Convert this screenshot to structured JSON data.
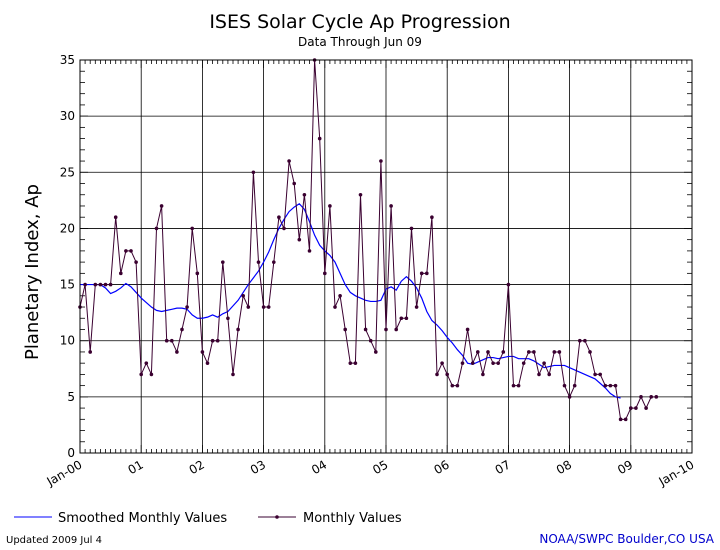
{
  "chart_data": {
    "type": "line",
    "title": "ISES Solar Cycle Ap Progression",
    "subtitle": "Data Through Jun 09",
    "ylabel": "Planetary Index, Ap",
    "xlabel": "",
    "x_tick_labels": [
      "Jan-00",
      "01",
      "02",
      "03",
      "04",
      "05",
      "06",
      "07",
      "08",
      "09",
      "Jan-10"
    ],
    "y_tick_labels": [
      "0",
      "5",
      "10",
      "15",
      "20",
      "25",
      "30",
      "35"
    ],
    "ylim": [
      0,
      35
    ],
    "x_range_years": [
      2000.0,
      2010.0
    ],
    "grid": true,
    "legend_position": "bottom-left",
    "colors": {
      "smoothed": "#0000ff",
      "monthly": "#3a0030",
      "axes": "#000000"
    },
    "series": [
      {
        "name": "Monthly Values",
        "x_start": "2000-01",
        "frequency": "monthly",
        "values": [
          13,
          15,
          9,
          15,
          15,
          15,
          15,
          21,
          16,
          18,
          18,
          17,
          7,
          8,
          7,
          20,
          22,
          10,
          10,
          9,
          11,
          13,
          20,
          16,
          9,
          8,
          10,
          10,
          17,
          12,
          7,
          11,
          14,
          13,
          25,
          17,
          13,
          13,
          17,
          21,
          20,
          26,
          24,
          19,
          23,
          18,
          35,
          28,
          16,
          22,
          13,
          14,
          11,
          8,
          8,
          23,
          11,
          10,
          9,
          26,
          11,
          22,
          11,
          12,
          12,
          20,
          13,
          16,
          16,
          21,
          7,
          8,
          7,
          6,
          6,
          8,
          11,
          8,
          9,
          7,
          9,
          8,
          8,
          9,
          15,
          6,
          6,
          8,
          9,
          9,
          7,
          8,
          7,
          9,
          9,
          6,
          5,
          6,
          10,
          10,
          9,
          7,
          7,
          6,
          6,
          6,
          3,
          3,
          4,
          4,
          5,
          4,
          5,
          5
        ]
      },
      {
        "name": "Smoothed Monthly Values",
        "x_start": "2000-01",
        "frequency": "monthly",
        "values": [
          15,
          15,
          15,
          15,
          15,
          14.7,
          14.2,
          14.4,
          14.7,
          15.1,
          14.8,
          14.3,
          13.8,
          13.4,
          13.0,
          12.7,
          12.6,
          12.7,
          12.8,
          12.9,
          12.9,
          12.8,
          12.3,
          12.0,
          12.0,
          12.1,
          12.3,
          12.1,
          12.4,
          12.6,
          13.1,
          13.6,
          14.3,
          15.0,
          15.6,
          16.2,
          17.0,
          17.9,
          19.0,
          20.0,
          20.8,
          21.5,
          21.9,
          22.2,
          21.7,
          20.6,
          19.4,
          18.5,
          18.0,
          17.6,
          17.0,
          16.0,
          15.0,
          14.3,
          14.0,
          13.8,
          13.6,
          13.5,
          13.5,
          13.6,
          14.6,
          14.8,
          14.5,
          15.3,
          15.7,
          15.3,
          14.7,
          13.8,
          12.6,
          11.8,
          11.4,
          10.9,
          10.3,
          9.8,
          9.2,
          8.7,
          8.0,
          7.9,
          8.1,
          8.3,
          8.5,
          8.5,
          8.4,
          8.5,
          8.6,
          8.6,
          8.4,
          8.4,
          8.4,
          8.2,
          7.9,
          7.6,
          7.7,
          7.8,
          7.8,
          7.8,
          7.6,
          7.4,
          7.2,
          7.0,
          6.8,
          6.6,
          6.2,
          5.8,
          5.3,
          5.0,
          4.9
        ]
      }
    ]
  },
  "legend": {
    "smoothed_label": "Smoothed Monthly Values",
    "monthly_label": "Monthly Values"
  },
  "footer": {
    "updated": "Updated 2009 Jul  4",
    "credit": "NOAA/SWPC Boulder,CO USA"
  }
}
